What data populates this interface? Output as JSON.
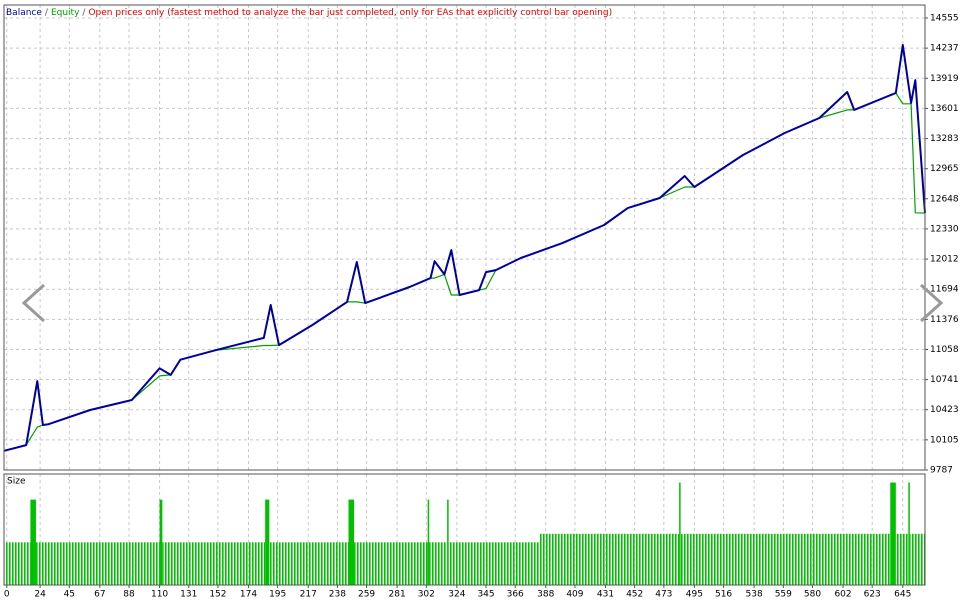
{
  "chart_data": [
    {
      "type": "line",
      "separator": "/",
      "subtitle": "Open prices only (fastest method to analyze the bar just completed, only for EAs that explicitly control bar opening)",
      "x": [
        -2,
        14,
        22,
        26,
        30,
        60,
        90,
        110,
        118,
        125,
        150,
        185,
        190,
        196,
        220,
        245,
        252,
        258,
        290,
        305,
        308,
        315,
        320,
        326,
        340,
        345,
        352,
        370,
        400,
        430,
        447,
        470,
        488,
        495,
        530,
        560,
        585,
        605,
        610,
        640,
        645,
        651,
        654,
        661
      ],
      "series": [
        {
          "name": "Balance",
          "color": "#0000a0",
          "values": [
            9990,
            10050,
            10725,
            10262,
            10270,
            10420,
            10525,
            10860,
            10790,
            10950,
            11050,
            11180,
            11527,
            11105,
            11316,
            11560,
            11981,
            11548,
            11717,
            11811,
            11990,
            11850,
            12107,
            11633,
            11685,
            11875,
            11896,
            12023,
            12180,
            12371,
            12550,
            12656,
            12888,
            12772,
            13110,
            13342,
            13500,
            13774,
            13585,
            13764,
            14270,
            13658,
            13900,
            12498
          ]
        },
        {
          "name": "Equity",
          "color": "#00a000",
          "values": [
            9990,
            10050,
            10240,
            10262,
            10270,
            10420,
            10525,
            10780,
            10790,
            10950,
            11050,
            11100,
            11100,
            11105,
            11316,
            11560,
            11560,
            11548,
            11717,
            11811,
            11811,
            11850,
            11633,
            11633,
            11685,
            11700,
            11896,
            12023,
            12180,
            12371,
            12550,
            12656,
            12772,
            12772,
            13110,
            13342,
            13500,
            13585,
            13585,
            13764,
            13650,
            13650,
            12500,
            12498
          ]
        }
      ],
      "subtitle_color": "#e00000",
      "xlim": [
        -2,
        661
      ],
      "ylim": [
        9787,
        14692
      ],
      "yticks": [
        14555,
        14237,
        13919,
        13601,
        13283,
        12965,
        12648,
        12330,
        12012,
        11694,
        11376,
        11058,
        10741,
        10423,
        10105,
        9787
      ],
      "grid": true
    },
    {
      "type": "histogram",
      "title": "Size",
      "color": "#00c000",
      "bins": [
        -2,
        17,
        21,
        110,
        112,
        186,
        189,
        246,
        250,
        303,
        304,
        317,
        318,
        383,
        484,
        485,
        636,
        640,
        649,
        650,
        661
      ],
      "values": [
        0.1,
        0.2,
        0.1,
        0.2,
        0.1,
        0.2,
        0.1,
        0.2,
        0.1,
        0.2,
        0.1,
        0.2,
        0.1,
        0.12,
        0.24,
        0.12,
        0.24,
        0.12,
        0.24,
        0.12
      ],
      "xlim": [
        -2,
        661
      ],
      "ylim": [
        0,
        0.26
      ],
      "xticks": [
        0,
        24,
        45,
        67,
        88,
        110,
        131,
        152,
        174,
        195,
        217,
        238,
        259,
        281,
        302,
        324,
        345,
        366,
        388,
        409,
        431,
        452,
        473,
        495,
        516,
        538,
        559,
        580,
        602,
        623,
        645
      ],
      "grid": true
    }
  ]
}
